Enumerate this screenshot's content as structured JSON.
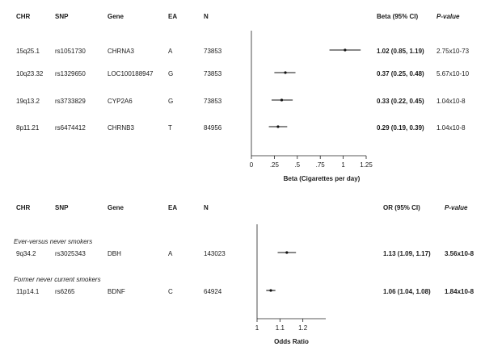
{
  "panel1": {
    "headers": {
      "chr": "CHR",
      "snp": "SNP",
      "gene": "Gene",
      "ea": "EA",
      "n": "N",
      "effect": "Beta (95% CI)",
      "p": "P-value"
    },
    "rows": [
      {
        "chr": "15q25.1",
        "snp": "rs1051730",
        "gene": "CHRNA3",
        "ea": "A",
        "n": "73853",
        "effect": "1.02 (0.85, 1.19)",
        "p": "2.75x10-73"
      },
      {
        "chr": "10q23.32",
        "snp": "rs1329650",
        "gene": "LOC100188947",
        "ea": "G",
        "n": "73853",
        "effect": "0.37 (0.25, 0.48)",
        "p": "5.67x10-10"
      },
      {
        "chr": "19q13.2",
        "snp": "rs3733829",
        "gene": "CYP2A6",
        "ea": "G",
        "n": "73853",
        "effect": "0.33 (0.22, 0.45)",
        "p": "1.04x10-8"
      },
      {
        "chr": "8p11.21",
        "snp": "rs6474412",
        "gene": "CHRNB3",
        "ea": "T",
        "n": "84956",
        "effect": "0.29 (0.19, 0.39)",
        "p": "1.04x10-8"
      }
    ]
  },
  "panel2": {
    "headers": {
      "chr": "CHR",
      "snp": "SNP",
      "gene": "Gene",
      "ea": "EA",
      "n": "N",
      "effect": "OR (95% CI)",
      "p": "P-value"
    },
    "groups": [
      "Ever-versus never smokers",
      "Former never current smokers"
    ],
    "rows": [
      {
        "chr": "9q34.2",
        "snp": "rs3025343",
        "gene": "DBH",
        "ea": "A",
        "n": "143023",
        "effect": "1.13 (1.09, 1.17)",
        "p": "3.56x10-8"
      },
      {
        "chr": "11p14.1",
        "snp": "rs6265",
        "gene": "BDNF",
        "ea": "C",
        "n": "64924",
        "effect": "1.06 (1.04, 1.08)",
        "p": "1.84x10-8"
      }
    ]
  },
  "chart_data": [
    {
      "type": "scatter",
      "xlabel": "Beta (Cigarettes per day)",
      "xlim": [
        0,
        1.25
      ],
      "xticks": [
        0,
        0.25,
        0.5,
        0.75,
        1,
        1.25
      ],
      "xticklabels": [
        "0",
        ".25",
        ".5",
        ".75",
        "1",
        "1.25"
      ],
      "categories": [
        "rs1051730",
        "rs1329650",
        "rs3733829",
        "rs6474412"
      ],
      "estimates": [
        1.02,
        0.37,
        0.33,
        0.29
      ],
      "lower": [
        0.85,
        0.25,
        0.22,
        0.19
      ],
      "upper": [
        1.19,
        0.48,
        0.45,
        0.39
      ]
    },
    {
      "type": "scatter",
      "xlabel": "Odds Ratio",
      "xlim": [
        1,
        1.3
      ],
      "xticks": [
        1,
        1.1,
        1.2
      ],
      "xticklabels": [
        "1",
        "1.1",
        "1.2"
      ],
      "categories": [
        "rs3025343",
        "rs6265"
      ],
      "estimates": [
        1.13,
        1.06
      ],
      "lower": [
        1.09,
        1.04
      ],
      "upper": [
        1.17,
        1.08
      ]
    }
  ]
}
